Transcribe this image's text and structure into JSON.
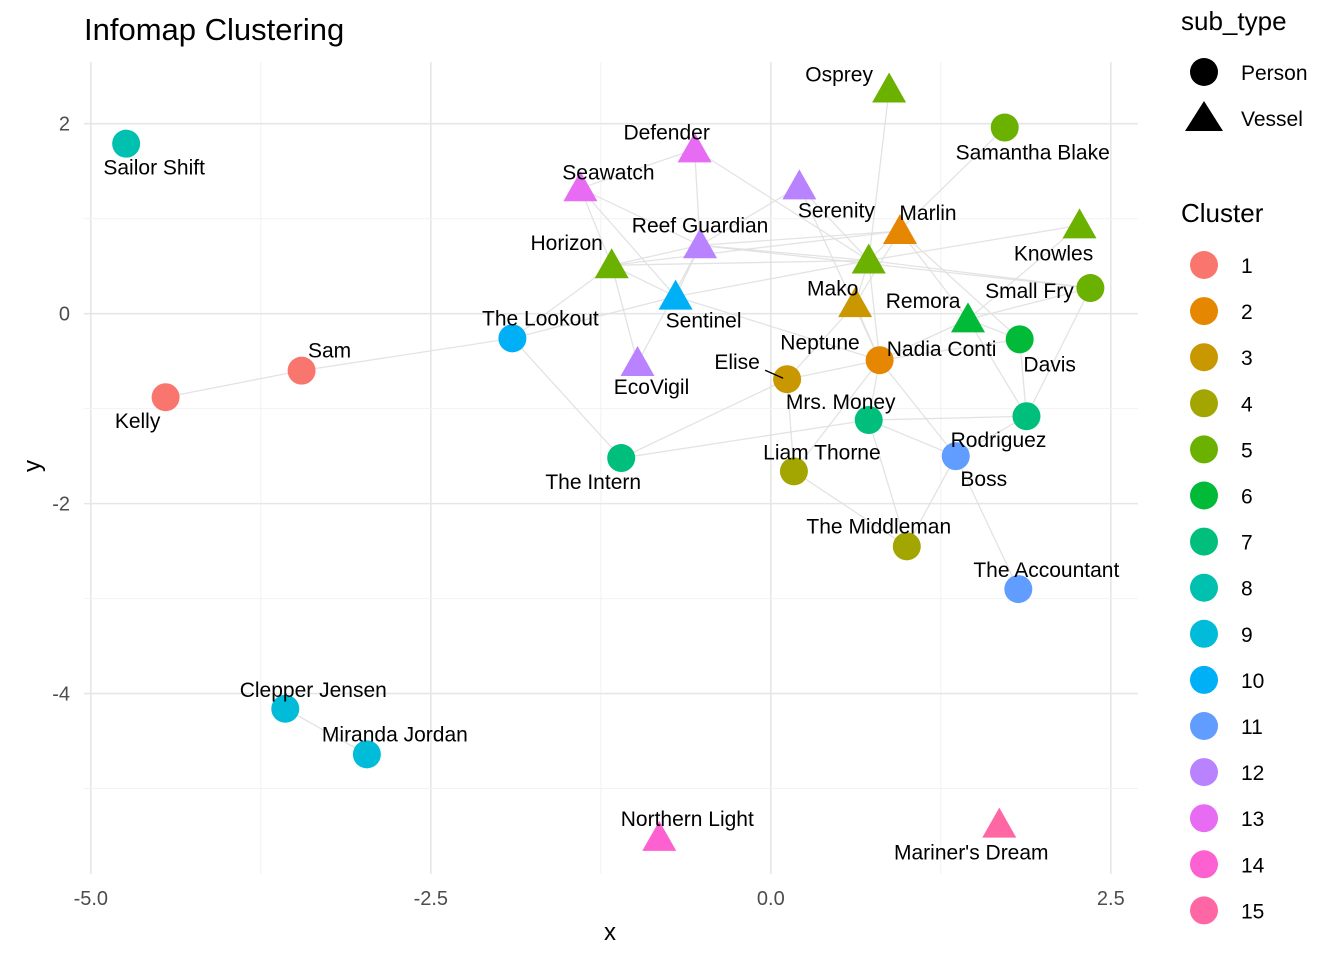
{
  "chart_data": {
    "type": "scatter",
    "title": "Infomap Clustering",
    "xlabel": "x",
    "ylabel": "y",
    "xlim": [
      -5.05,
      2.7
    ],
    "ylim": [
      -5.9,
      2.65
    ],
    "x_ticks": [
      -5.0,
      -2.5,
      0.0,
      2.5
    ],
    "x_tick_labels": [
      "-5.0",
      "-2.5",
      "0.0",
      "2.5"
    ],
    "y_ticks": [
      2,
      0,
      -2,
      -4
    ],
    "y_tick_labels": [
      "2",
      "0",
      "-2",
      "-4"
    ],
    "grid": true,
    "legend_shape": {
      "title": "sub_type",
      "items": [
        {
          "label": "Person",
          "shape": "circle-icon"
        },
        {
          "label": "Vessel",
          "shape": "triangle-icon"
        }
      ]
    },
    "legend_color": {
      "title": "Cluster",
      "items": [
        {
          "label": "1",
          "color": "#F8766D"
        },
        {
          "label": "2",
          "color": "#E58700"
        },
        {
          "label": "3",
          "color": "#C99800"
        },
        {
          "label": "4",
          "color": "#A3A500"
        },
        {
          "label": "5",
          "color": "#6BB100"
        },
        {
          "label": "6",
          "color": "#00BA38"
        },
        {
          "label": "7",
          "color": "#00BF7D"
        },
        {
          "label": "8",
          "color": "#00C0AF"
        },
        {
          "label": "9",
          "color": "#00BCD8"
        },
        {
          "label": "10",
          "color": "#00B0F6"
        },
        {
          "label": "11",
          "color": "#619CFF"
        },
        {
          "label": "12",
          "color": "#B983FF"
        },
        {
          "label": "13",
          "color": "#E76BF3"
        },
        {
          "label": "14",
          "color": "#FD61D1"
        },
        {
          "label": "15",
          "color": "#FF67A4"
        }
      ]
    },
    "nodes": [
      {
        "label": "Sailor Shift",
        "x": -4.74,
        "y": 1.79,
        "cluster": 8,
        "shape": "circle"
      },
      {
        "label": "Kelly",
        "x": -4.45,
        "y": -0.88,
        "cluster": 1,
        "shape": "circle"
      },
      {
        "label": "Sam",
        "x": -3.45,
        "y": -0.6,
        "cluster": 1,
        "shape": "circle"
      },
      {
        "label": "Clepper Jensen",
        "x": -3.57,
        "y": -4.16,
        "cluster": 9,
        "shape": "circle"
      },
      {
        "label": "Miranda Jordan",
        "x": -2.97,
        "y": -4.64,
        "cluster": 9,
        "shape": "circle"
      },
      {
        "label": "The Lookout",
        "x": -1.9,
        "y": -0.26,
        "cluster": 10,
        "shape": "circle"
      },
      {
        "label": "Sentinel",
        "x": -0.7,
        "y": 0.18,
        "cluster": 10,
        "shape": "triangle"
      },
      {
        "label": "Horizon",
        "x": -1.17,
        "y": 0.51,
        "cluster": 5,
        "shape": "triangle"
      },
      {
        "label": "Seawatch",
        "x": -1.4,
        "y": 1.32,
        "cluster": 13,
        "shape": "triangle"
      },
      {
        "label": "Defender",
        "x": -0.56,
        "y": 1.73,
        "cluster": 13,
        "shape": "triangle"
      },
      {
        "label": "Reef Guardian",
        "x": -0.52,
        "y": 0.72,
        "cluster": 12,
        "shape": "triangle"
      },
      {
        "label": "EcoVigil",
        "x": -0.98,
        "y": -0.52,
        "cluster": 12,
        "shape": "triangle"
      },
      {
        "label": "Serenity",
        "x": 0.21,
        "y": 1.34,
        "cluster": 12,
        "shape": "triangle"
      },
      {
        "label": "Osprey",
        "x": 0.87,
        "y": 2.36,
        "cluster": 5,
        "shape": "triangle"
      },
      {
        "label": "Samantha Blake",
        "x": 1.72,
        "y": 1.96,
        "cluster": 5,
        "shape": "circle"
      },
      {
        "label": "Marlin",
        "x": 0.95,
        "y": 0.87,
        "cluster": 2,
        "shape": "triangle"
      },
      {
        "label": "Knowles",
        "x": 2.27,
        "y": 0.93,
        "cluster": 5,
        "shape": "triangle"
      },
      {
        "label": "Small Fry",
        "x": 2.35,
        "y": 0.27,
        "cluster": 5,
        "shape": "circle"
      },
      {
        "label": "Mako",
        "x": 0.72,
        "y": 0.56,
        "cluster": 5,
        "shape": "triangle"
      },
      {
        "label": "Remora",
        "x": 0.62,
        "y": 0.1,
        "cluster": 3,
        "shape": "triangle"
      },
      {
        "label": "Neptune",
        "x": 1.45,
        "y": -0.06,
        "cluster": 6,
        "shape": "triangle"
      },
      {
        "label": "Nadia Conti",
        "x": 0.8,
        "y": -0.49,
        "cluster": 2,
        "shape": "circle"
      },
      {
        "label": "Davis",
        "x": 1.83,
        "y": -0.27,
        "cluster": 6,
        "shape": "circle"
      },
      {
        "label": "Elise",
        "x": 0.12,
        "y": -0.69,
        "cluster": 3,
        "shape": "circle"
      },
      {
        "label": "Mrs. Money",
        "x": 0.72,
        "y": -1.12,
        "cluster": 7,
        "shape": "circle"
      },
      {
        "label": "Rodriguez",
        "x": 1.88,
        "y": -1.08,
        "cluster": 7,
        "shape": "circle"
      },
      {
        "label": "The Intern",
        "x": -1.1,
        "y": -1.52,
        "cluster": 7,
        "shape": "circle"
      },
      {
        "label": "Liam Thorne",
        "x": 0.17,
        "y": -1.66,
        "cluster": 4,
        "shape": "circle"
      },
      {
        "label": "Boss",
        "x": 1.36,
        "y": -1.5,
        "cluster": 11,
        "shape": "circle"
      },
      {
        "label": "The Middleman",
        "x": 1.0,
        "y": -2.45,
        "cluster": 4,
        "shape": "circle"
      },
      {
        "label": "The Accountant",
        "x": 1.82,
        "y": -2.9,
        "cluster": 11,
        "shape": "circle"
      },
      {
        "label": "Northern Light",
        "x": -0.82,
        "y": -5.52,
        "cluster": 14,
        "shape": "triangle"
      },
      {
        "label": "Mariner's Dream",
        "x": 1.68,
        "y": -5.38,
        "cluster": 15,
        "shape": "triangle"
      }
    ],
    "edges": [
      [
        "Kelly",
        "Sam"
      ],
      [
        "Sam",
        "The Lookout"
      ],
      [
        "Clepper Jensen",
        "Miranda Jordan"
      ],
      [
        "The Lookout",
        "Sentinel"
      ],
      [
        "The Lookout",
        "Horizon"
      ],
      [
        "The Lookout",
        "The Intern"
      ],
      [
        "Sentinel",
        "Horizon"
      ],
      [
        "Sentinel",
        "Reef Guardian"
      ],
      [
        "Sentinel",
        "Seawatch"
      ],
      [
        "Sentinel",
        "Mako"
      ],
      [
        "Sentinel",
        "Nadia Conti"
      ],
      [
        "Horizon",
        "Seawatch"
      ],
      [
        "Horizon",
        "Reef Guardian"
      ],
      [
        "Horizon",
        "Marlin"
      ],
      [
        "Horizon",
        "Mako"
      ],
      [
        "Seawatch",
        "Defender"
      ],
      [
        "Seawatch",
        "Reef Guardian"
      ],
      [
        "Defender",
        "Reef Guardian"
      ],
      [
        "Defender",
        "Mako"
      ],
      [
        "Reef Guardian",
        "EcoVigil"
      ],
      [
        "Reef Guardian",
        "Serenity"
      ],
      [
        "Reef Guardian",
        "Mako"
      ],
      [
        "Reef Guardian",
        "Marlin"
      ],
      [
        "Reef Guardian",
        "Small Fry"
      ],
      [
        "Serenity",
        "Nadia Conti"
      ],
      [
        "Serenity",
        "Mako"
      ],
      [
        "Osprey",
        "Mako"
      ],
      [
        "Samantha Blake",
        "Mako"
      ],
      [
        "Marlin",
        "Remora"
      ],
      [
        "Marlin",
        "Neptune"
      ],
      [
        "Marlin",
        "Davis"
      ],
      [
        "Knowles",
        "Mako"
      ],
      [
        "Knowles",
        "Neptune"
      ],
      [
        "Small Fry",
        "Neptune"
      ],
      [
        "Small Fry",
        "Mako"
      ],
      [
        "Small Fry",
        "Rodriguez"
      ],
      [
        "Mako",
        "Nadia Conti"
      ],
      [
        "Mako",
        "Remora"
      ],
      [
        "Remora",
        "Elise"
      ],
      [
        "Remora",
        "Nadia Conti"
      ],
      [
        "Neptune",
        "Davis"
      ],
      [
        "Neptune",
        "Nadia Conti"
      ],
      [
        "Nadia Conti",
        "Davis"
      ],
      [
        "Nadia Conti",
        "Elise"
      ],
      [
        "Nadia Conti",
        "Mrs. Money"
      ],
      [
        "Nadia Conti",
        "Liam Thorne"
      ],
      [
        "Nadia Conti",
        "Boss"
      ],
      [
        "Davis",
        "Rodriguez"
      ],
      [
        "Elise",
        "Liam Thorne"
      ],
      [
        "Elise",
        "The Intern"
      ],
      [
        "Mrs. Money",
        "Rodriguez"
      ],
      [
        "Mrs. Money",
        "Boss"
      ],
      [
        "Mrs. Money",
        "The Middleman"
      ],
      [
        "Rodriguez",
        "Boss"
      ],
      [
        "The Intern",
        "Mrs. Money"
      ],
      [
        "Liam Thorne",
        "The Middleman"
      ],
      [
        "Boss",
        "The Middleman"
      ],
      [
        "Boss",
        "The Accountant"
      ],
      [
        "Neptune",
        "Rodriguez"
      ],
      [
        "EcoVigil",
        "Horizon"
      ]
    ]
  }
}
